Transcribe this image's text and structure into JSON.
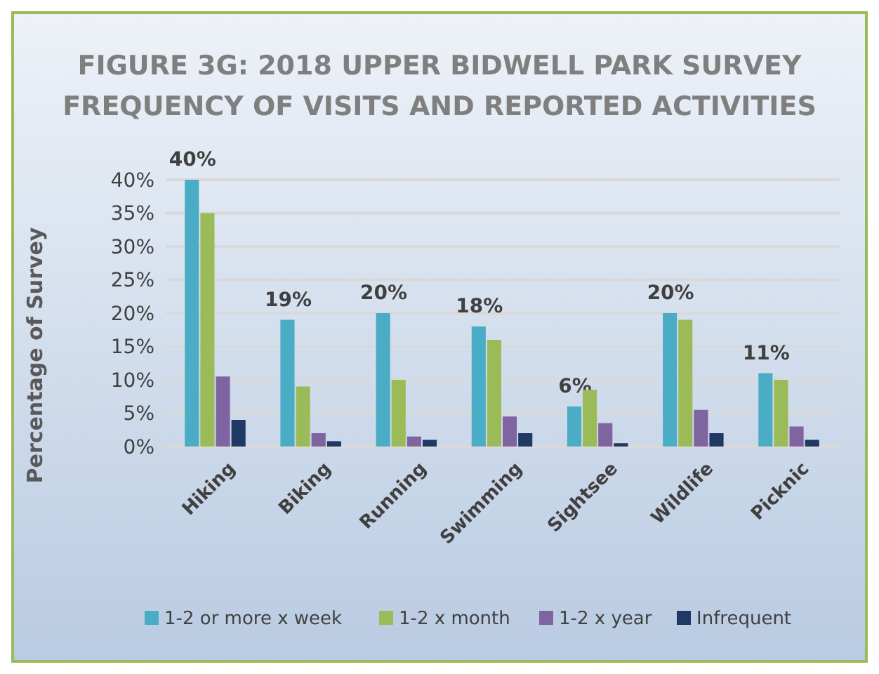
{
  "chart_data": {
    "type": "bar",
    "title": "FIGURE 3G: 2018 UPPER BIDWELL PARK SURVEY",
    "subtitle": "FREQUENCY OF  VISITS AND REPORTED ACTIVITIES",
    "ylabel": "Percentage of Survey",
    "categories": [
      "Hiking",
      "Biking",
      "Running",
      "Swimming",
      "Sightsee",
      "Wildlife",
      "Picknic"
    ],
    "series": [
      {
        "name": "1-2 or more x week",
        "color": "#4bacc6",
        "values": [
          40,
          19,
          20,
          18,
          6,
          20,
          11
        ],
        "value_labels": [
          "40%",
          "19%",
          "20%",
          "18%",
          "6%",
          "20%",
          "11%"
        ]
      },
      {
        "name": "1-2 x month",
        "color": "#9bbb59",
        "values": [
          35,
          9,
          10,
          16,
          8.5,
          19,
          10
        ]
      },
      {
        "name": "1-2 x year",
        "color": "#8064a2",
        "values": [
          10.5,
          2,
          1.5,
          4.5,
          3.5,
          5.5,
          3
        ]
      },
      {
        "name": "Infrequent",
        "color": "#1f3864",
        "values": [
          4,
          0.8,
          1,
          2,
          0.5,
          2,
          1
        ]
      }
    ],
    "ylim": [
      0,
      40
    ],
    "yticks": [
      {
        "value": 0,
        "label": "0%"
      },
      {
        "value": 5,
        "label": "5%"
      },
      {
        "value": 10,
        "label": "10%"
      },
      {
        "value": 15,
        "label": "15%"
      },
      {
        "value": 20,
        "label": "20%"
      },
      {
        "value": 25,
        "label": "25%"
      },
      {
        "value": 30,
        "label": "30%"
      },
      {
        "value": 35,
        "label": "35%"
      },
      {
        "value": 40,
        "label": "40%"
      }
    ],
    "grid": "y",
    "legend": "bottom"
  }
}
